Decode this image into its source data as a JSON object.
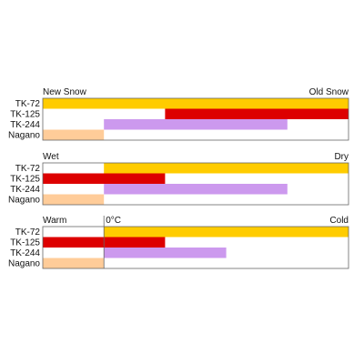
{
  "colors": {
    "TK-72": "#FFCC00",
    "TK-125": "#DD0000",
    "TK-244": "#CC99EE",
    "Nagano": "#FFCC99",
    "frame": "#666666"
  },
  "chart_data": [
    {
      "type": "bar",
      "orientation": "horizontal-range",
      "left_label": "New Snow",
      "right_label": "Old Snow",
      "marker_label": "",
      "categories": [
        "TK-72",
        "TK-125",
        "TK-244",
        "Nagano"
      ],
      "ranges": [
        [
          0,
          1.0
        ],
        [
          0.4,
          1.0
        ],
        [
          0.2,
          0.8
        ],
        [
          0,
          0.2
        ]
      ]
    },
    {
      "type": "bar",
      "orientation": "horizontal-range",
      "left_label": "Wet",
      "right_label": "Dry",
      "marker_label": "",
      "categories": [
        "TK-72",
        "TK-125",
        "TK-244",
        "Nagano"
      ],
      "ranges": [
        [
          0.2,
          1.0
        ],
        [
          0,
          0.4
        ],
        [
          0.2,
          0.8
        ],
        [
          0,
          0.2
        ]
      ]
    },
    {
      "type": "bar",
      "orientation": "horizontal-range",
      "left_label": "Warm",
      "right_label": "Cold",
      "marker_label": "0°C",
      "marker_at": 0.2,
      "categories": [
        "TK-72",
        "TK-125",
        "TK-244",
        "Nagano"
      ],
      "ranges": [
        [
          0.2,
          1.0
        ],
        [
          0,
          0.4
        ],
        [
          0.2,
          0.6
        ],
        [
          0,
          0.2
        ]
      ]
    }
  ]
}
